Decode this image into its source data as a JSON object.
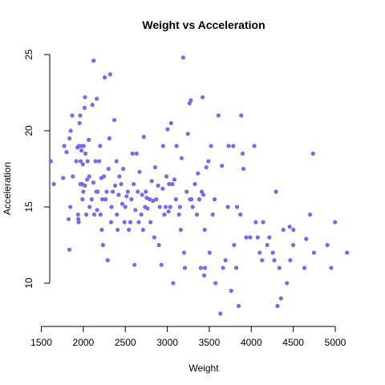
{
  "chart_data": {
    "type": "scatter",
    "title": "Weight vs Acceleration",
    "xlabel": "Weight",
    "ylabel": "Acceleration",
    "xlim": [
      1500,
      5200
    ],
    "ylim": [
      8,
      25
    ],
    "xticks": [
      1500,
      2000,
      2500,
      3000,
      3500,
      4000,
      4500,
      5000
    ],
    "yticks": [
      10,
      15,
      20,
      25
    ],
    "grid": false,
    "point_color": "#7B68EE",
    "points": [
      [
        1613,
        18.0
      ],
      [
        1649,
        16.5
      ],
      [
        1760,
        16.9
      ],
      [
        1773,
        19.0
      ],
      [
        1800,
        18.6
      ],
      [
        1825,
        14.2
      ],
      [
        1834,
        12.2
      ],
      [
        1835,
        19.5
      ],
      [
        1845,
        15.0
      ],
      [
        1850,
        20.0
      ],
      [
        1867,
        21.0
      ],
      [
        1875,
        17.0
      ],
      [
        1915,
        18.0
      ],
      [
        1930,
        18.9
      ],
      [
        1937,
        14.5
      ],
      [
        1940,
        14.2
      ],
      [
        1945,
        14.0
      ],
      [
        1950,
        19.0
      ],
      [
        1955,
        20.5
      ],
      [
        1963,
        21.0
      ],
      [
        1965,
        16.5
      ],
      [
        1968,
        18.0
      ],
      [
        1975,
        19.0
      ],
      [
        1978,
        18.7
      ],
      [
        1985,
        16.5
      ],
      [
        1990,
        15.5
      ],
      [
        1995,
        17.8
      ],
      [
        2000,
        16.0
      ],
      [
        2003,
        19.0
      ],
      [
        2015,
        21.5
      ],
      [
        2019,
        16.4
      ],
      [
        2020,
        22.2
      ],
      [
        2025,
        18.5
      ],
      [
        2035,
        14.5
      ],
      [
        2045,
        16.8
      ],
      [
        2050,
        18.0
      ],
      [
        2065,
        19.4
      ],
      [
        2070,
        17.0
      ],
      [
        2075,
        15.0
      ],
      [
        2100,
        15.5
      ],
      [
        2108,
        21.7
      ],
      [
        2120,
        16.6
      ],
      [
        2123,
        24.6
      ],
      [
        2130,
        14.5
      ],
      [
        2145,
        18.0
      ],
      [
        2155,
        16.0
      ],
      [
        2160,
        22.1
      ],
      [
        2164,
        14.8
      ],
      [
        2171,
        16.0
      ],
      [
        2189,
        18.0
      ],
      [
        2200,
        19.0
      ],
      [
        2205,
        14.5
      ],
      [
        2215,
        16.9
      ],
      [
        2220,
        13.5
      ],
      [
        2226,
        15.5
      ],
      [
        2234,
        12.5
      ],
      [
        2245,
        17.0
      ],
      [
        2254,
        23.5
      ],
      [
        2265,
        15.5
      ],
      [
        2278,
        16.0
      ],
      [
        2290,
        11.5
      ],
      [
        2300,
        17.5
      ],
      [
        2310,
        19.5
      ],
      [
        2320,
        23.7
      ],
      [
        2330,
        14.0
      ],
      [
        2335,
        15.0
      ],
      [
        2350,
        16.0
      ],
      [
        2370,
        20.7
      ],
      [
        2379,
        16.4
      ],
      [
        2395,
        18.0
      ],
      [
        2400,
        14.5
      ],
      [
        2408,
        13.5
      ],
      [
        2420,
        15.8
      ],
      [
        2430,
        17.0
      ],
      [
        2451,
        16.5
      ],
      [
        2464,
        15.2
      ],
      [
        2475,
        17.5
      ],
      [
        2490,
        14.0
      ],
      [
        2500,
        15.0
      ],
      [
        2515,
        15.7
      ],
      [
        2530,
        16.0
      ],
      [
        2542,
        13.5
      ],
      [
        2560,
        14.0
      ],
      [
        2572,
        15.5
      ],
      [
        2585,
        18.5
      ],
      [
        2600,
        16.5
      ],
      [
        2610,
        11.2
      ],
      [
        2620,
        14.8
      ],
      [
        2635,
        18.5
      ],
      [
        2648,
        16.0
      ],
      [
        2660,
        14.0
      ],
      [
        2670,
        17.3
      ],
      [
        2690,
        14.5
      ],
      [
        2700,
        15.8
      ],
      [
        2711,
        13.5
      ],
      [
        2720,
        19.6
      ],
      [
        2735,
        15.0
      ],
      [
        2745,
        16.0
      ],
      [
        2755,
        15.6
      ],
      [
        2765,
        14.9
      ],
      [
        2790,
        15.5
      ],
      [
        2800,
        14.0
      ],
      [
        2815,
        16.7
      ],
      [
        2830,
        15.4
      ],
      [
        2845,
        13.0
      ],
      [
        2855,
        17.6
      ],
      [
        2868,
        15.5
      ],
      [
        2890,
        16.4
      ],
      [
        2900,
        12.5
      ],
      [
        2910,
        15.0
      ],
      [
        2930,
        11.2
      ],
      [
        2945,
        16.2
      ],
      [
        2950,
        19.0
      ],
      [
        2965,
        14.5
      ],
      [
        2980,
        15.0
      ],
      [
        2990,
        17.0
      ],
      [
        3003,
        20.1
      ],
      [
        3015,
        14.7
      ],
      [
        3021,
        16.5
      ],
      [
        3035,
        15.0
      ],
      [
        3045,
        20.5
      ],
      [
        3060,
        16.5
      ],
      [
        3070,
        10.0
      ],
      [
        3085,
        16.8
      ],
      [
        3102,
        15.5
      ],
      [
        3110,
        19.0
      ],
      [
        3139,
        14.5
      ],
      [
        3150,
        15.0
      ],
      [
        3160,
        13.5
      ],
      [
        3170,
        18.2
      ],
      [
        3190,
        24.8
      ],
      [
        3200,
        12.0
      ],
      [
        3210,
        11.0
      ],
      [
        3230,
        16.0
      ],
      [
        3245,
        19.8
      ],
      [
        3265,
        21.8
      ],
      [
        3270,
        15.5
      ],
      [
        3280,
        22.0
      ],
      [
        3288,
        15.5
      ],
      [
        3302,
        15.0
      ],
      [
        3329,
        16.5
      ],
      [
        3353,
        14.5
      ],
      [
        3365,
        17.2
      ],
      [
        3381,
        15.5
      ],
      [
        3399,
        11.0
      ],
      [
        3410,
        16.0
      ],
      [
        3420,
        22.2
      ],
      [
        3430,
        15.8
      ],
      [
        3439,
        10.5
      ],
      [
        3445,
        13.5
      ],
      [
        3449,
        11.0
      ],
      [
        3465,
        17.6
      ],
      [
        3490,
        18.0
      ],
      [
        3504,
        12.0
      ],
      [
        3520,
        19.0
      ],
      [
        3540,
        14.5
      ],
      [
        3563,
        15.5
      ],
      [
        3574,
        10.0
      ],
      [
        3609,
        21.0
      ],
      [
        3632,
        8.0
      ],
      [
        3651,
        17.7
      ],
      [
        3664,
        11.0
      ],
      [
        3693,
        11.5
      ],
      [
        3721,
        15.0
      ],
      [
        3730,
        19.0
      ],
      [
        3761,
        9.5
      ],
      [
        3785,
        19.0
      ],
      [
        3795,
        12.5
      ],
      [
        3821,
        11.0
      ],
      [
        3830,
        15.0
      ],
      [
        3850,
        8.5
      ],
      [
        3870,
        14.5
      ],
      [
        3880,
        21.0
      ],
      [
        3897,
        18.5
      ],
      [
        3907,
        17.5
      ],
      [
        3940,
        13.0
      ],
      [
        3988,
        13.0
      ],
      [
        4036,
        19.0
      ],
      [
        4054,
        14.0
      ],
      [
        4077,
        13.0
      ],
      [
        4100,
        12.0
      ],
      [
        4129,
        11.5
      ],
      [
        4141,
        14.0
      ],
      [
        4190,
        12.5
      ],
      [
        4215,
        13.0
      ],
      [
        4257,
        12.0
      ],
      [
        4274,
        11.5
      ],
      [
        4294,
        16.0
      ],
      [
        4312,
        8.5
      ],
      [
        4335,
        11.0
      ],
      [
        4354,
        9.0
      ],
      [
        4382,
        13.5
      ],
      [
        4425,
        10.0
      ],
      [
        4457,
        13.7
      ],
      [
        4464,
        11.5
      ],
      [
        4499,
        12.5
      ],
      [
        4502,
        13.5
      ],
      [
        4633,
        11.0
      ],
      [
        4654,
        12.9
      ],
      [
        4699,
        14.5
      ],
      [
        4735,
        18.5
      ],
      [
        4746,
        12.0
      ],
      [
        4906,
        12.5
      ],
      [
        4951,
        11.0
      ],
      [
        4997,
        14.0
      ],
      [
        5140,
        12.0
      ]
    ]
  }
}
